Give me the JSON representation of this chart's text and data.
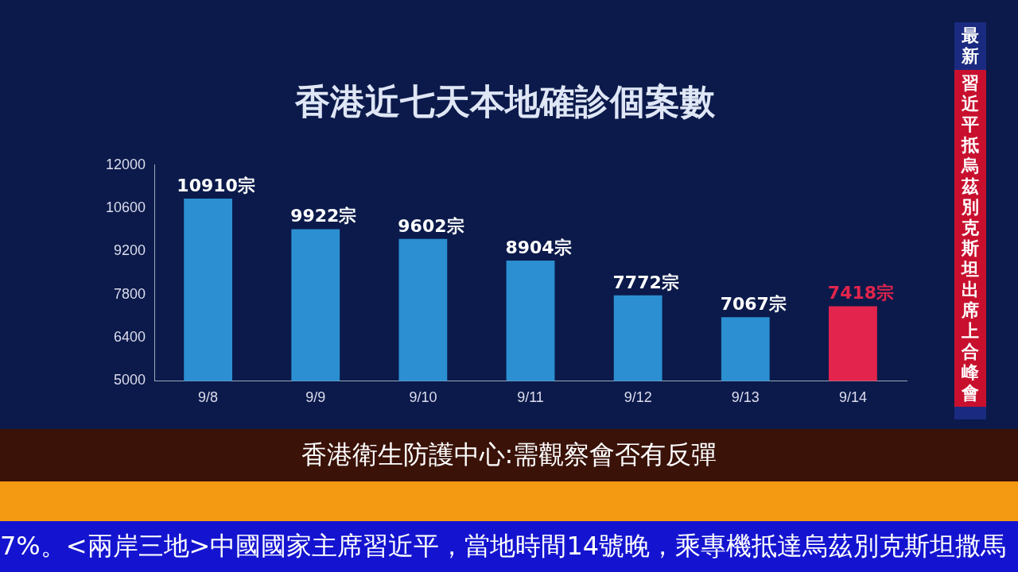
{
  "chart_data": {
    "type": "bar",
    "title": "香港近七天本地確診個案數",
    "categories": [
      "9/8",
      "9/9",
      "9/10",
      "9/11",
      "9/12",
      "9/13",
      "9/14"
    ],
    "values": [
      10910,
      9922,
      9602,
      8904,
      7772,
      7067,
      7418
    ],
    "colors": [
      "#2b8fd2",
      "#2b8fd2",
      "#2b8fd2",
      "#2b8fd2",
      "#2b8fd2",
      "#2b8fd2",
      "#e3244c"
    ],
    "value_labels": [
      "10910宗",
      "9922宗",
      "9602宗",
      "8904宗",
      "7772宗",
      "7067宗",
      "7418宗"
    ],
    "ylim": [
      5000,
      12000
    ],
    "yticks": [
      5000,
      6400,
      7800,
      9200,
      10600,
      12000
    ],
    "grid": false,
    "legend": false,
    "annotations": [
      "香港衛生防護中心:需觀察會否有反彈",
      "最新",
      "習近平抵烏茲別克斯坦出席上合峰會",
      "7%。<兩岸三地>中國國家主席習近平，當地時間14號晚，乘專機抵達烏茲別克斯坦撒馬"
    ]
  }
}
